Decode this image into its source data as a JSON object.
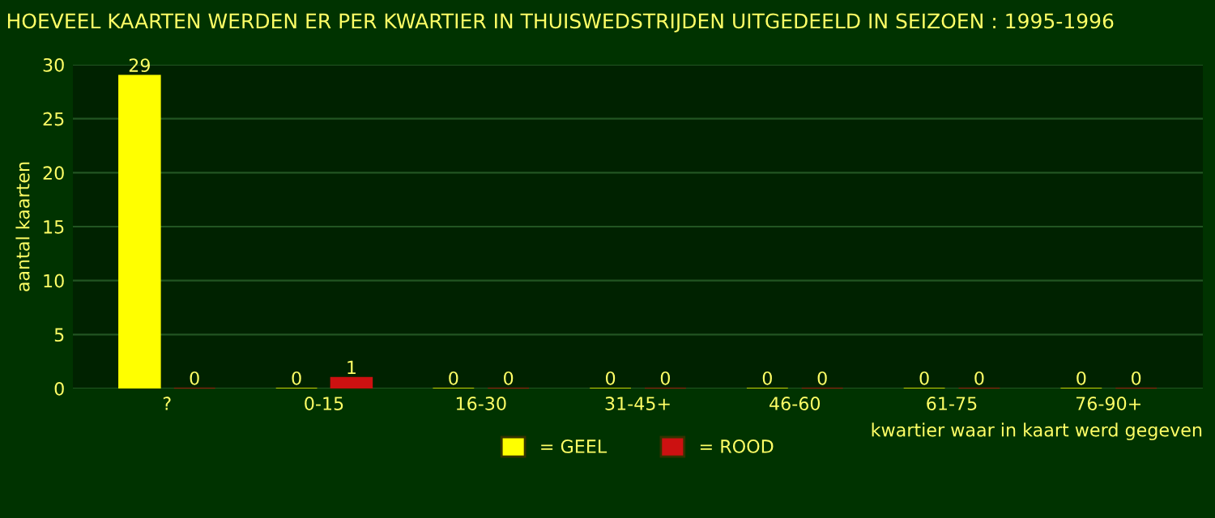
{
  "chart_data": {
    "type": "bar",
    "title": "HOEVEEL KAARTEN WERDEN ER PER KWARTIER IN THUISWEDSTRIJDEN UITGEDEELD IN SEIZOEN : 1995-1996",
    "categories": [
      "?",
      "0-15",
      "16-30",
      "31-45+",
      "46-60",
      "61-75",
      "76-90+"
    ],
    "series": [
      {
        "name": "= GEEL",
        "color": "#ffff00",
        "values": [
          29,
          0,
          0,
          0,
          0,
          0,
          0
        ]
      },
      {
        "name": "= ROOD",
        "color": "#cc1111",
        "values": [
          0,
          1,
          0,
          0,
          0,
          0,
          0
        ]
      }
    ],
    "xlabel": "kwartier waar in kaart werd gegeven",
    "ylabel": "aantal kaarten",
    "ylim": [
      0,
      30
    ],
    "yticks": [
      0,
      5,
      10,
      15,
      20,
      25,
      30
    ],
    "grid": "y",
    "legend": "bottom",
    "data_labels": true
  }
}
